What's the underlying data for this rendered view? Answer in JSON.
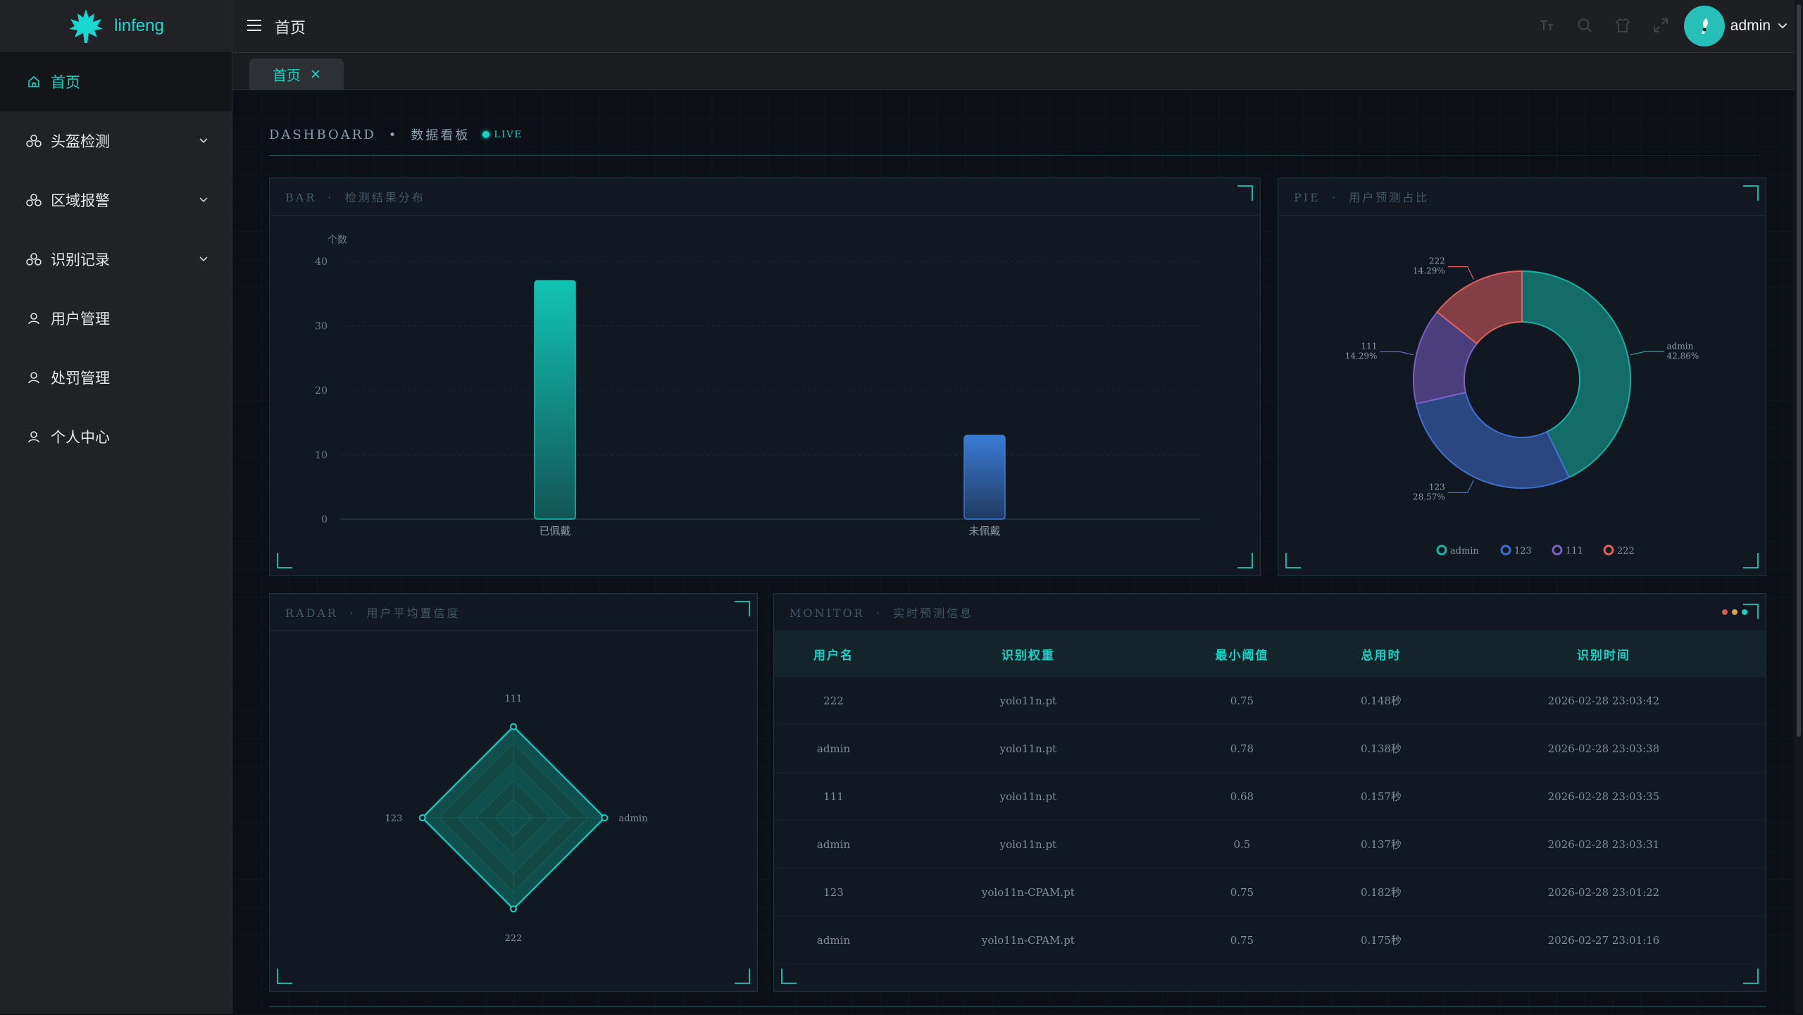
{
  "brand": {
    "name": "linfeng",
    "color": "#19d8d0"
  },
  "sidebar": {
    "items": [
      {
        "label": "首页",
        "icon": "home-icon",
        "active": true
      },
      {
        "label": "头盔检测",
        "icon": "helmet-icon",
        "expandable": true
      },
      {
        "label": "区域报警",
        "icon": "helmet-icon",
        "expandable": true
      },
      {
        "label": "识别记录",
        "icon": "helmet-icon",
        "expandable": true
      },
      {
        "label": "用户管理",
        "icon": "user-icon"
      },
      {
        "label": "处罚管理",
        "icon": "user-icon"
      },
      {
        "label": "个人中心",
        "icon": "user-icon"
      }
    ]
  },
  "header": {
    "breadcrumb": "首页",
    "username": "admin"
  },
  "tabs": [
    {
      "label": "首页"
    }
  ],
  "dashboard": {
    "title_en": "DASHBOARD",
    "separator": "•",
    "title_cn": "数据看板",
    "live": "LIVE"
  },
  "panels": {
    "bar": {
      "tag": "BAR",
      "title": "检测结果分布",
      "ylabel": "个数"
    },
    "pie": {
      "tag": "PIE",
      "title": "用户预测占比"
    },
    "radar": {
      "tag": "RADAR",
      "title": "用户平均置信度"
    },
    "monitor": {
      "tag": "MONITOR",
      "title": "实时预测信息"
    }
  },
  "chart_data": [
    {
      "type": "bar",
      "ylabel": "个数",
      "categories": [
        "已佩戴",
        "未佩戴"
      ],
      "values": [
        37,
        13
      ],
      "ylim": [
        0,
        40
      ],
      "yticks": [
        0,
        10,
        20,
        30,
        40
      ],
      "grid": true,
      "colors": [
        "#12c4b4",
        "#3a7bd5"
      ]
    },
    {
      "type": "pie",
      "donut": true,
      "slices": [
        {
          "name": "admin",
          "value": 3,
          "label": "42.86%",
          "color": "#16b3a3"
        },
        {
          "name": "123",
          "value": 2,
          "label": "28.57%",
          "color": "#3f6fd0"
        },
        {
          "name": "111",
          "value": 1,
          "label": "14.29%",
          "color": "#7a5fc6"
        },
        {
          "name": "222",
          "value": 1,
          "label": "14.29%",
          "color": "#e06060"
        }
      ],
      "legend": "bottom"
    },
    {
      "type": "radar",
      "axes": [
        "111",
        "admin",
        "222",
        "123"
      ],
      "values": [
        1,
        1,
        1,
        1
      ],
      "max": 1,
      "color": "#17d2c6"
    }
  ],
  "monitor_table": {
    "columns": [
      "用户名",
      "识别权重",
      "最小阈值",
      "总用时",
      "识别时间"
    ],
    "rows": [
      [
        "222",
        "yolo11n.pt",
        "0.75",
        "0.148秒",
        "2026-02-28 23:03:42"
      ],
      [
        "admin",
        "yolo11n.pt",
        "0.78",
        "0.138秒",
        "2026-02-28 23:03:38"
      ],
      [
        "111",
        "yolo11n.pt",
        "0.68",
        "0.157秒",
        "2026-02-28 23:03:35"
      ],
      [
        "admin",
        "yolo11n.pt",
        "0.5",
        "0.137秒",
        "2026-02-28 23:03:31"
      ],
      [
        "123",
        "yolo11n-CPAM.pt",
        "0.75",
        "0.182秒",
        "2026-02-28 23:01:22"
      ],
      [
        "admin",
        "yolo11n-CPAM.pt",
        "0.75",
        "0.175秒",
        "2026-02-27 23:01:16"
      ]
    ]
  }
}
